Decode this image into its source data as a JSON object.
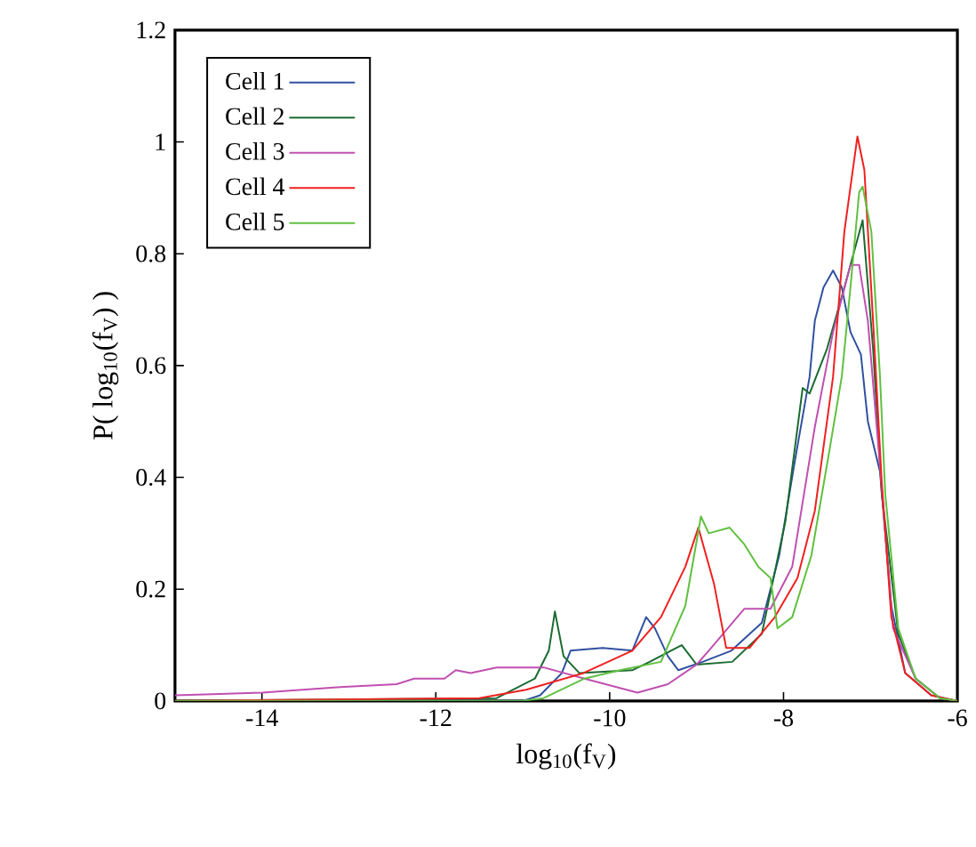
{
  "chart_data": {
    "type": "line",
    "xlabel": "log$_{10}$(f$_{V}$)",
    "ylabel": "P( log$_{10}$(f$_{V}$) )",
    "xlim": [
      -15,
      -6
    ],
    "xticks": [
      -14,
      -12,
      -10,
      -8,
      -6
    ],
    "ylim": [
      0,
      1.2
    ],
    "yticks": [
      0,
      0.2,
      0.4,
      0.6,
      0.8,
      1,
      1.2
    ],
    "grid": false,
    "legend": "top left",
    "marker": "none",
    "line_style": "solid",
    "series": [
      {
        "name": "Cell 1",
        "color": "#3050a0",
        "x": [
          -15,
          -11,
          -10.8,
          -10.55,
          -10.45,
          -10.08,
          -9.74,
          -9.58,
          -9.48,
          -9.33,
          -9.21,
          -8.93,
          -8.6,
          -8.25,
          -8.05,
          -7.88,
          -7.7,
          -7.64,
          -7.54,
          -7.43,
          -7.33,
          -7.23,
          -7.11,
          -7.03,
          -6.89,
          -6.76,
          -6.6,
          -6.3,
          -6
        ],
        "values": [
          0,
          0,
          0.01,
          0.05,
          0.09,
          0.095,
          0.09,
          0.15,
          0.13,
          0.08,
          0.055,
          0.07,
          0.09,
          0.14,
          0.26,
          0.42,
          0.58,
          0.68,
          0.74,
          0.77,
          0.74,
          0.66,
          0.62,
          0.5,
          0.41,
          0.17,
          0.05,
          0.01,
          0
        ]
      },
      {
        "name": "Cell 2",
        "color": "#1a6b30",
        "x": [
          -15,
          -11.3,
          -10.86,
          -10.7,
          -10.63,
          -10.53,
          -10.35,
          -9.74,
          -9.54,
          -9.17,
          -9.0,
          -8.59,
          -8.25,
          -7.98,
          -7.78,
          -7.7,
          -7.5,
          -7.3,
          -7.09,
          -6.97,
          -6.87,
          -6.68,
          -6.48,
          -6.2,
          -6
        ],
        "values": [
          0,
          0.005,
          0.04,
          0.09,
          0.16,
          0.08,
          0.05,
          0.055,
          0.07,
          0.1,
          0.065,
          0.07,
          0.12,
          0.32,
          0.56,
          0.55,
          0.63,
          0.74,
          0.86,
          0.63,
          0.37,
          0.12,
          0.04,
          0.005,
          0
        ]
      },
      {
        "name": "Cell 3",
        "color": "#c050b0",
        "x": [
          -15,
          -14,
          -13.1,
          -12.45,
          -12.25,
          -11.9,
          -11.77,
          -11.6,
          -11.3,
          -10.76,
          -10.29,
          -9.68,
          -9.33,
          -9.0,
          -8.86,
          -8.45,
          -8.15,
          -7.9,
          -7.64,
          -7.43,
          -7.23,
          -7.13,
          -7.03,
          -6.89,
          -6.74,
          -6.48,
          -6.2,
          -6
        ],
        "values": [
          0.01,
          0.015,
          0.025,
          0.03,
          0.04,
          0.04,
          0.055,
          0.05,
          0.06,
          0.06,
          0.04,
          0.015,
          0.03,
          0.065,
          0.09,
          0.165,
          0.165,
          0.24,
          0.49,
          0.66,
          0.78,
          0.78,
          0.68,
          0.42,
          0.13,
          0.04,
          0.005,
          0
        ]
      },
      {
        "name": "Cell 4",
        "color": "#f02020",
        "x": [
          -15,
          -11.5,
          -10.96,
          -10.3,
          -9.74,
          -9.41,
          -9.13,
          -8.98,
          -8.8,
          -8.66,
          -8.39,
          -8.1,
          -7.84,
          -7.64,
          -7.43,
          -7.3,
          -7.15,
          -7.07,
          -6.97,
          -6.87,
          -6.76,
          -6.6,
          -6.3,
          -6
        ],
        "values": [
          0,
          0.005,
          0.02,
          0.05,
          0.09,
          0.15,
          0.24,
          0.31,
          0.21,
          0.095,
          0.095,
          0.15,
          0.22,
          0.34,
          0.58,
          0.84,
          1.01,
          0.95,
          0.68,
          0.39,
          0.15,
          0.05,
          0.01,
          0
        ]
      },
      {
        "name": "Cell 5",
        "color": "#60c040",
        "x": [
          -15,
          -11,
          -10.76,
          -10.29,
          -9.88,
          -9.41,
          -9.13,
          -8.95,
          -8.86,
          -8.62,
          -8.45,
          -8.29,
          -8.15,
          -8.07,
          -7.9,
          -7.68,
          -7.47,
          -7.33,
          -7.23,
          -7.13,
          -7.09,
          -6.99,
          -6.89,
          -6.83,
          -6.68,
          -6.48,
          -6.2,
          -6
        ],
        "values": [
          0,
          0,
          0.005,
          0.04,
          0.055,
          0.07,
          0.17,
          0.33,
          0.3,
          0.31,
          0.28,
          0.24,
          0.22,
          0.13,
          0.15,
          0.26,
          0.45,
          0.58,
          0.74,
          0.91,
          0.92,
          0.84,
          0.58,
          0.37,
          0.13,
          0.04,
          0.005,
          0
        ]
      }
    ]
  }
}
